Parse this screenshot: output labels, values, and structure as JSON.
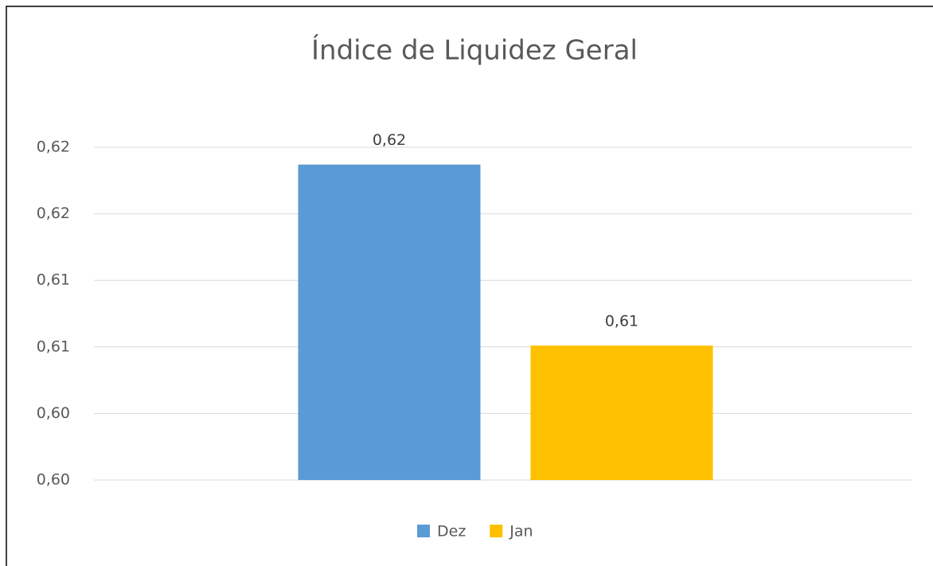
{
  "chart_data": {
    "type": "bar",
    "title": "Índice de Liquidez Geral",
    "categories": [
      null
    ],
    "series": [
      {
        "name": "Dez",
        "color": "#5b9bd5",
        "values": [
          0.6237
        ],
        "value_labels": [
          "0,62"
        ]
      },
      {
        "name": "Jan",
        "color": "#ffc000",
        "values": [
          0.6101
        ],
        "value_labels": [
          "0,61"
        ]
      }
    ],
    "ylim": [
      0.6,
      0.625
    ],
    "yticks": [
      {
        "value": 0.6,
        "label": "0,60"
      },
      {
        "value": 0.605,
        "label": "0,60"
      },
      {
        "value": 0.61,
        "label": "0,61"
      },
      {
        "value": 0.615,
        "label": "0,61"
      },
      {
        "value": 0.62,
        "label": "0,62"
      },
      {
        "value": 0.625,
        "label": "0,62"
      }
    ],
    "grid": true,
    "legend": "bottom"
  }
}
